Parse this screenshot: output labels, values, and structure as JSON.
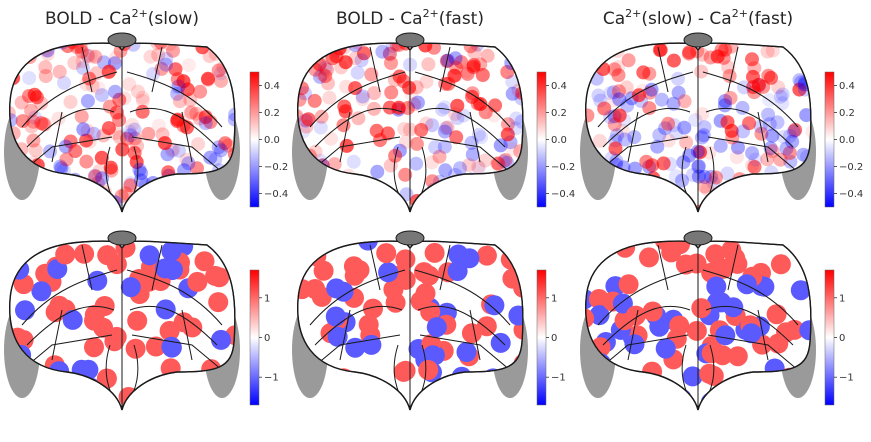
{
  "panels": [
    {
      "title_parts": [
        "BOLD - Ca",
        "2+",
        "(slow)"
      ],
      "bias": "red",
      "cbar": "top",
      "tone": "soft"
    },
    {
      "title_parts": [
        "BOLD - Ca",
        "2+",
        "(fast)"
      ],
      "bias": "red",
      "cbar": "top",
      "tone": "soft"
    },
    {
      "title_parts": [
        "Ca",
        "2+",
        "(slow) - Ca",
        "2+",
        "(fast)"
      ],
      "bias": "blue",
      "cbar": "top",
      "tone": "soft"
    },
    {
      "title_parts": [],
      "bias": "red",
      "cbar": "bottom",
      "tone": "binary"
    },
    {
      "title_parts": [],
      "bias": "red",
      "cbar": "bottom",
      "tone": "binary"
    },
    {
      "title_parts": [],
      "bias": "blue",
      "cbar": "bottom",
      "tone": "binary"
    }
  ],
  "colorbars": {
    "top": {
      "ticks": [
        "0.4",
        "0.2",
        "0.0",
        "−0.2",
        "−0.4"
      ],
      "range": [
        -0.5,
        0.5
      ],
      "values": [
        0.4,
        0.2,
        0.0,
        -0.2,
        -0.4
      ]
    },
    "bottom": {
      "ticks": [
        "1",
        "0",
        "−1"
      ],
      "range": [
        -1.7,
        1.7
      ],
      "values": [
        1,
        0,
        -1
      ]
    }
  },
  "colors": {
    "positive": "#ff0000",
    "negative": "#0000ff",
    "strong_pos": "#ff5a5a",
    "strong_neg": "#5a5aff",
    "outline": "#1a1a1a",
    "lateral_gray": "#9a9a9a"
  }
}
